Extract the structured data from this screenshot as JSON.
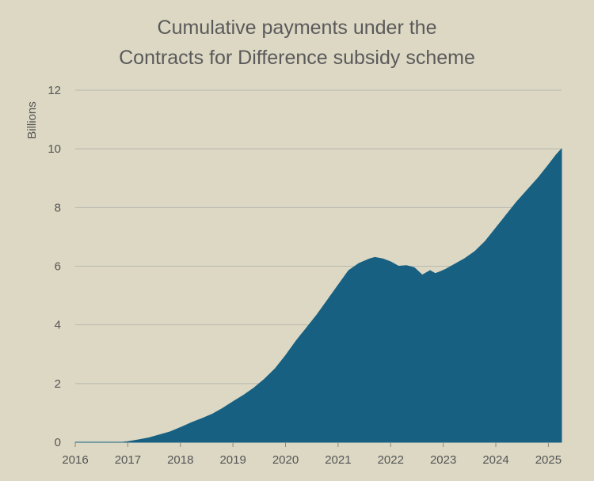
{
  "chart_data": {
    "type": "area",
    "title_lines": [
      "Cumulative payments under the",
      "Contracts for Difference subsidy scheme"
    ],
    "xlabel": "",
    "ylabel": "Billions",
    "xlim": [
      2016,
      2025.25
    ],
    "ylim": [
      0,
      12
    ],
    "x_ticks": [
      "2016",
      "2017",
      "2018",
      "2019",
      "2020",
      "2021",
      "2022",
      "2023",
      "2024",
      "2025"
    ],
    "y_ticks": [
      "0",
      "2",
      "4",
      "6",
      "8",
      "10",
      "12"
    ],
    "grid": true,
    "legend": "none",
    "colors": {
      "background": "#dcd8c4",
      "area": "#176082",
      "grid": "#b9b8b0",
      "text": "#555555"
    },
    "series": [
      {
        "x": [
          2016.0,
          2016.9,
          2017.0,
          2017.2,
          2017.4,
          2017.6,
          2017.8,
          2018.0,
          2018.2,
          2018.4,
          2018.6,
          2018.8,
          2019.0,
          2019.2,
          2019.4,
          2019.6,
          2019.8,
          2020.0,
          2020.2,
          2020.4,
          2020.6,
          2020.8,
          2021.0,
          2021.2,
          2021.4,
          2021.6,
          2021.7,
          2021.85,
          2022.0,
          2022.15,
          2022.3,
          2022.45,
          2022.6,
          2022.75,
          2022.85,
          2022.95,
          2023.05,
          2023.2,
          2023.4,
          2023.6,
          2023.8,
          2024.0,
          2024.2,
          2024.4,
          2024.6,
          2024.8,
          2025.0,
          2025.15,
          2025.25
        ],
        "y": [
          0,
          0,
          0.02,
          0.08,
          0.15,
          0.25,
          0.35,
          0.5,
          0.66,
          0.8,
          0.95,
          1.15,
          1.38,
          1.6,
          1.85,
          2.15,
          2.5,
          2.95,
          3.45,
          3.9,
          4.35,
          4.85,
          5.35,
          5.85,
          6.1,
          6.25,
          6.3,
          6.25,
          6.15,
          6.0,
          6.02,
          5.95,
          5.7,
          5.85,
          5.75,
          5.82,
          5.9,
          6.05,
          6.25,
          6.5,
          6.85,
          7.3,
          7.75,
          8.2,
          8.6,
          9.0,
          9.45,
          9.8,
          10.0
        ]
      }
    ]
  }
}
